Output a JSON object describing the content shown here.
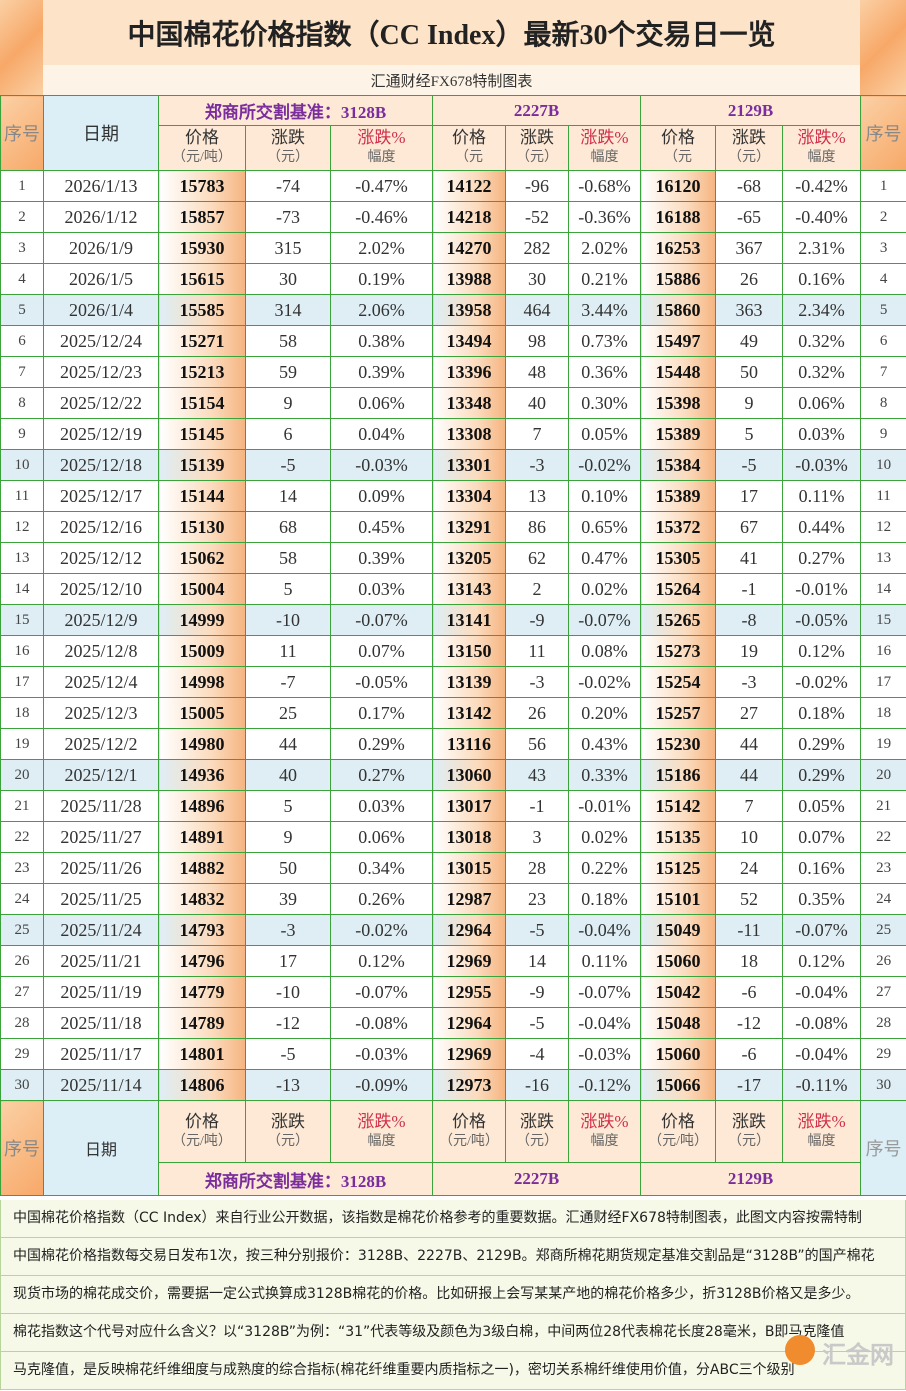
{
  "title": "中国棉花价格指数（CC Index）最新30个交易日一览",
  "subtitle": "汇通财经FX678特制图表",
  "header": {
    "seq": "序号",
    "date": "日期",
    "seq_right": "序号",
    "groups": [
      "郑商所交割基准：3128B",
      "2227B",
      "2129B"
    ],
    "columns": [
      {
        "label": "价格",
        "unit": "（元/吨）"
      },
      {
        "label": "涨跌",
        "unit": "（元）"
      },
      {
        "label": "涨跌%",
        "unit": "幅度"
      },
      {
        "label": "价格",
        "unit": "（元"
      },
      {
        "label": "涨跌",
        "unit": "（元）"
      },
      {
        "label": "涨跌%",
        "unit": "幅度"
      },
      {
        "label": "价格",
        "unit": "（元"
      },
      {
        "label": "涨跌",
        "unit": "（元）"
      },
      {
        "label": "涨跌%",
        "unit": "幅度"
      }
    ]
  },
  "rows": [
    [
      "1",
      "2026/1/13",
      "15783",
      "-74",
      "-0.47%",
      "14122",
      "-96",
      "-0.68%",
      "16120",
      "-68",
      "-0.42%",
      "1"
    ],
    [
      "2",
      "2026/1/12",
      "15857",
      "-73",
      "-0.46%",
      "14218",
      "-52",
      "-0.36%",
      "16188",
      "-65",
      "-0.40%",
      "2"
    ],
    [
      "3",
      "2026/1/9",
      "15930",
      "315",
      "2.02%",
      "14270",
      "282",
      "2.02%",
      "16253",
      "367",
      "2.31%",
      "3"
    ],
    [
      "4",
      "2026/1/5",
      "15615",
      "30",
      "0.19%",
      "13988",
      "30",
      "0.21%",
      "15886",
      "26",
      "0.16%",
      "4"
    ],
    [
      "5",
      "2026/1/4",
      "15585",
      "314",
      "2.06%",
      "13958",
      "464",
      "3.44%",
      "15860",
      "363",
      "2.34%",
      "5"
    ],
    [
      "6",
      "2025/12/24",
      "15271",
      "58",
      "0.38%",
      "13494",
      "98",
      "0.73%",
      "15497",
      "49",
      "0.32%",
      "6"
    ],
    [
      "7",
      "2025/12/23",
      "15213",
      "59",
      "0.39%",
      "13396",
      "48",
      "0.36%",
      "15448",
      "50",
      "0.32%",
      "7"
    ],
    [
      "8",
      "2025/12/22",
      "15154",
      "9",
      "0.06%",
      "13348",
      "40",
      "0.30%",
      "15398",
      "9",
      "0.06%",
      "8"
    ],
    [
      "9",
      "2025/12/19",
      "15145",
      "6",
      "0.04%",
      "13308",
      "7",
      "0.05%",
      "15389",
      "5",
      "0.03%",
      "9"
    ],
    [
      "10",
      "2025/12/18",
      "15139",
      "-5",
      "-0.03%",
      "13301",
      "-3",
      "-0.02%",
      "15384",
      "-5",
      "-0.03%",
      "10"
    ],
    [
      "11",
      "2025/12/17",
      "15144",
      "14",
      "0.09%",
      "13304",
      "13",
      "0.10%",
      "15389",
      "17",
      "0.11%",
      "11"
    ],
    [
      "12",
      "2025/12/16",
      "15130",
      "68",
      "0.45%",
      "13291",
      "86",
      "0.65%",
      "15372",
      "67",
      "0.44%",
      "12"
    ],
    [
      "13",
      "2025/12/12",
      "15062",
      "58",
      "0.39%",
      "13205",
      "62",
      "0.47%",
      "15305",
      "41",
      "0.27%",
      "13"
    ],
    [
      "14",
      "2025/12/10",
      "15004",
      "5",
      "0.03%",
      "13143",
      "2",
      "0.02%",
      "15264",
      "-1",
      "-0.01%",
      "14"
    ],
    [
      "15",
      "2025/12/9",
      "14999",
      "-10",
      "-0.07%",
      "13141",
      "-9",
      "-0.07%",
      "15265",
      "-8",
      "-0.05%",
      "15"
    ],
    [
      "16",
      "2025/12/8",
      "15009",
      "11",
      "0.07%",
      "13150",
      "11",
      "0.08%",
      "15273",
      "19",
      "0.12%",
      "16"
    ],
    [
      "17",
      "2025/12/4",
      "14998",
      "-7",
      "-0.05%",
      "13139",
      "-3",
      "-0.02%",
      "15254",
      "-3",
      "-0.02%",
      "17"
    ],
    [
      "18",
      "2025/12/3",
      "15005",
      "25",
      "0.17%",
      "13142",
      "26",
      "0.20%",
      "15257",
      "27",
      "0.18%",
      "18"
    ],
    [
      "19",
      "2025/12/2",
      "14980",
      "44",
      "0.29%",
      "13116",
      "56",
      "0.43%",
      "15230",
      "44",
      "0.29%",
      "19"
    ],
    [
      "20",
      "2025/12/1",
      "14936",
      "40",
      "0.27%",
      "13060",
      "43",
      "0.33%",
      "15186",
      "44",
      "0.29%",
      "20"
    ],
    [
      "21",
      "2025/11/28",
      "14896",
      "5",
      "0.03%",
      "13017",
      "-1",
      "-0.01%",
      "15142",
      "7",
      "0.05%",
      "21"
    ],
    [
      "22",
      "2025/11/27",
      "14891",
      "9",
      "0.06%",
      "13018",
      "3",
      "0.02%",
      "15135",
      "10",
      "0.07%",
      "22"
    ],
    [
      "23",
      "2025/11/26",
      "14882",
      "50",
      "0.34%",
      "13015",
      "28",
      "0.22%",
      "15125",
      "24",
      "0.16%",
      "23"
    ],
    [
      "24",
      "2025/11/25",
      "14832",
      "39",
      "0.26%",
      "12987",
      "23",
      "0.18%",
      "15101",
      "52",
      "0.35%",
      "24"
    ],
    [
      "25",
      "2025/11/24",
      "14793",
      "-3",
      "-0.02%",
      "12964",
      "-5",
      "-0.04%",
      "15049",
      "-11",
      "-0.07%",
      "25"
    ],
    [
      "26",
      "2025/11/21",
      "14796",
      "17",
      "0.12%",
      "12969",
      "14",
      "0.11%",
      "15060",
      "18",
      "0.12%",
      "26"
    ],
    [
      "27",
      "2025/11/19",
      "14779",
      "-10",
      "-0.07%",
      "12955",
      "-9",
      "-0.07%",
      "15042",
      "-6",
      "-0.04%",
      "27"
    ],
    [
      "28",
      "2025/11/18",
      "14789",
      "-12",
      "-0.08%",
      "12964",
      "-5",
      "-0.04%",
      "15048",
      "-12",
      "-0.08%",
      "28"
    ],
    [
      "29",
      "2025/11/17",
      "14801",
      "-5",
      "-0.03%",
      "12969",
      "-4",
      "-0.03%",
      "15060",
      "-6",
      "-0.04%",
      "29"
    ],
    [
      "30",
      "2025/11/14",
      "14806",
      "-13",
      "-0.09%",
      "12973",
      "-16",
      "-0.12%",
      "15066",
      "-17",
      "-0.11%",
      "30"
    ]
  ],
  "footer": {
    "seq": "序号",
    "date": "日期",
    "seq_right": "序号",
    "groups": [
      "郑商所交割基准：3128B",
      "2227B",
      "2129B"
    ],
    "columns": [
      {
        "label": "价格",
        "unit": "（元/吨）"
      },
      {
        "label": "涨跌",
        "unit": "（元）"
      },
      {
        "label": "涨跌%",
        "unit": "幅度"
      },
      {
        "label": "价格",
        "unit": "（元/吨）"
      },
      {
        "label": "涨跌",
        "unit": "（元）"
      },
      {
        "label": "涨跌%",
        "unit": "幅度"
      },
      {
        "label": "价格",
        "unit": "（元/吨）"
      },
      {
        "label": "涨跌",
        "unit": "（元）"
      },
      {
        "label": "涨跌%",
        "unit": "幅度"
      }
    ]
  },
  "notes": [
    "中国棉花价格指数（CC Index）来自行业公开数据，该指数是棉花价格参考的重要数据。汇通财经FX678特制图表，此图文内容按需特制",
    "中国棉花价格指数每交易日发布1次，按三种分别报价：3128B、2227B、2129B。郑商所棉花期货规定基准交割品是“3128B”的国产棉花",
    "现货市场的棉花成交价，需要据一定公式换算成3128B棉花的价格。比如研报上会写某某产地的棉花价格多少，折3128B价格又是多少。",
    "棉花指数这个代号对应什么含义？以“3128B”为例：“31”代表等级及颜色为3级白棉，中间两位28代表棉花长度28毫米，B即马克隆值",
    "马克隆值，是反映棉花纤维细度与成熟度的综合指标(棉花纤维重要内质指标之一)，密切关系棉纤维使用价值，分ABC三个级别"
  ],
  "watermark": "汇金网"
}
